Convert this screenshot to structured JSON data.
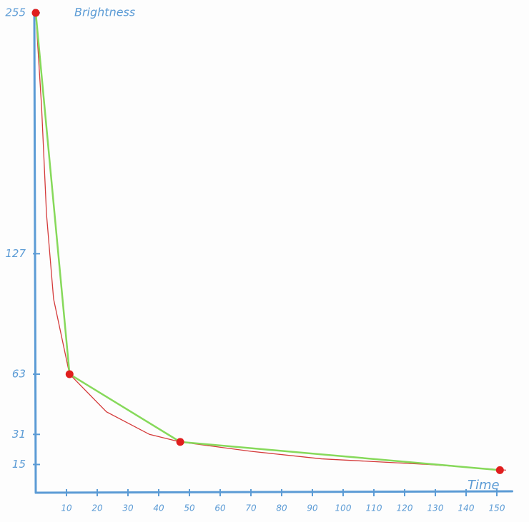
{
  "chart_data": {
    "type": "line",
    "y_label": "Brightness",
    "x_label": "Time",
    "xlim": [
      0,
      155
    ],
    "ylim": [
      0,
      255
    ],
    "xticks": [
      10,
      20,
      30,
      40,
      50,
      60,
      70,
      80,
      90,
      100,
      110,
      120,
      130,
      140,
      150
    ],
    "yticks": [
      15,
      31,
      63,
      127,
      255
    ],
    "series": [
      {
        "color": "#d43a3a",
        "markers": false,
        "x": [
          0,
          1.9,
          3.5,
          5.8,
          11,
          23,
          37,
          47,
          70,
          93,
          128,
          153
        ],
        "values": [
          255,
          205,
          148,
          103,
          63,
          43,
          31,
          27,
          22,
          18,
          15,
          12
        ]
      },
      {
        "color": "#86d95a",
        "markers": true,
        "marker_color": "#e01e1e",
        "x": [
          0,
          11,
          47,
          151
        ],
        "values": [
          255,
          63,
          27,
          12
        ]
      }
    ]
  }
}
